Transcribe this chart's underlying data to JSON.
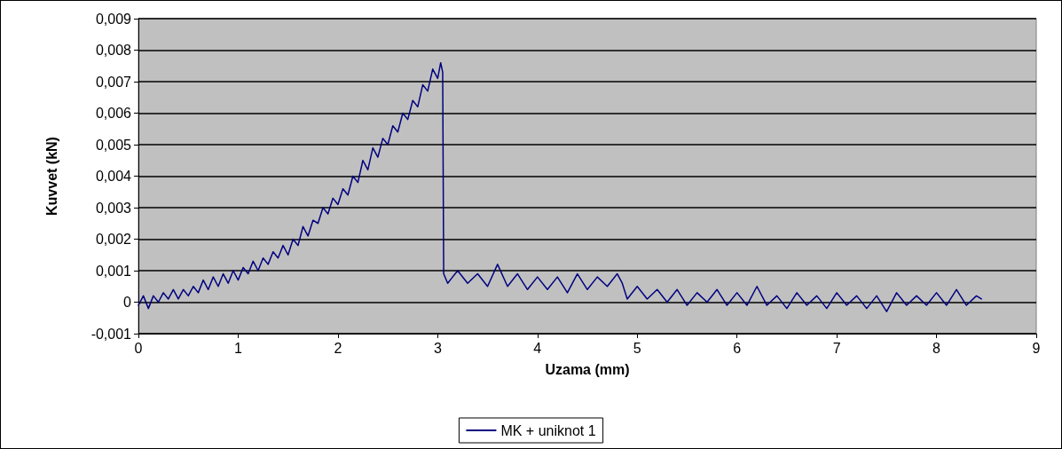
{
  "chart_data": {
    "type": "line",
    "xlabel": "Uzama (mm)",
    "ylabel": "Kuvvet (kN)",
    "series": [
      {
        "name": "MK + uniknot 1",
        "color": "#000080",
        "x": [
          0,
          0.05,
          0.1,
          0.15,
          0.2,
          0.25,
          0.3,
          0.35,
          0.4,
          0.45,
          0.5,
          0.55,
          0.6,
          0.65,
          0.7,
          0.75,
          0.8,
          0.85,
          0.9,
          0.95,
          1.0,
          1.05,
          1.1,
          1.15,
          1.2,
          1.25,
          1.3,
          1.35,
          1.4,
          1.45,
          1.5,
          1.55,
          1.6,
          1.65,
          1.7,
          1.75,
          1.8,
          1.85,
          1.9,
          1.95,
          2.0,
          2.05,
          2.1,
          2.15,
          2.2,
          2.25,
          2.3,
          2.35,
          2.4,
          2.45,
          2.5,
          2.55,
          2.6,
          2.65,
          2.7,
          2.75,
          2.8,
          2.85,
          2.9,
          2.95,
          3.0,
          3.03,
          3.05,
          3.06,
          3.1,
          3.2,
          3.3,
          3.4,
          3.5,
          3.6,
          3.7,
          3.8,
          3.9,
          4.0,
          4.1,
          4.2,
          4.3,
          4.4,
          4.5,
          4.6,
          4.7,
          4.8,
          4.85,
          4.9,
          5.0,
          5.1,
          5.2,
          5.3,
          5.4,
          5.5,
          5.6,
          5.7,
          5.8,
          5.9,
          6.0,
          6.1,
          6.2,
          6.3,
          6.4,
          6.5,
          6.6,
          6.7,
          6.8,
          6.9,
          7.0,
          7.1,
          7.2,
          7.3,
          7.4,
          7.5,
          7.6,
          7.7,
          7.8,
          7.9,
          8.0,
          8.1,
          8.2,
          8.3,
          8.4,
          8.45
        ],
        "values": [
          -0.0001,
          0.0002,
          -0.0002,
          0.0002,
          0.0,
          0.0003,
          0.0001,
          0.0004,
          0.0001,
          0.0004,
          0.0002,
          0.0005,
          0.0003,
          0.0007,
          0.0004,
          0.0008,
          0.0005,
          0.0009,
          0.0006,
          0.001,
          0.0007,
          0.0011,
          0.0009,
          0.0013,
          0.001,
          0.0014,
          0.0012,
          0.0016,
          0.0014,
          0.0018,
          0.0015,
          0.002,
          0.0018,
          0.0024,
          0.0021,
          0.0026,
          0.0025,
          0.003,
          0.0028,
          0.0033,
          0.0031,
          0.0036,
          0.0034,
          0.004,
          0.0038,
          0.0045,
          0.0042,
          0.0049,
          0.0046,
          0.0052,
          0.005,
          0.0056,
          0.0054,
          0.006,
          0.0058,
          0.0064,
          0.0062,
          0.0069,
          0.0067,
          0.0074,
          0.0071,
          0.0076,
          0.0073,
          0.0009,
          0.0006,
          0.001,
          0.0006,
          0.0009,
          0.0005,
          0.0012,
          0.0005,
          0.0009,
          0.0004,
          0.0008,
          0.0004,
          0.0008,
          0.0003,
          0.0009,
          0.0004,
          0.0008,
          0.0005,
          0.0009,
          0.0006,
          0.0001,
          0.0005,
          0.0001,
          0.0004,
          0.0,
          0.0004,
          -0.0001,
          0.0003,
          0.0,
          0.0004,
          -0.0001,
          0.0003,
          -0.0001,
          0.0005,
          -0.0001,
          0.0002,
          -0.0002,
          0.0003,
          -0.0001,
          0.0002,
          -0.0002,
          0.0003,
          -0.0001,
          0.0002,
          -0.0002,
          0.0002,
          -0.0003,
          0.0003,
          -0.0001,
          0.0002,
          -0.0001,
          0.0003,
          -0.0001,
          0.0004,
          -0.0001,
          0.0002,
          0.0001
        ]
      }
    ],
    "xlim": [
      0,
      9
    ],
    "xticks": [
      0,
      1,
      2,
      3,
      4,
      5,
      6,
      7,
      8,
      9
    ],
    "ylim": [
      -0.001,
      0.009
    ],
    "yticks": [
      {
        "value": -0.001,
        "label": "-0,001"
      },
      {
        "value": 0,
        "label": "0"
      },
      {
        "value": 0.001,
        "label": "0,001"
      },
      {
        "value": 0.002,
        "label": "0,002"
      },
      {
        "value": 0.003,
        "label": "0,003"
      },
      {
        "value": 0.004,
        "label": "0,004"
      },
      {
        "value": 0.005,
        "label": "0,005"
      },
      {
        "value": 0.006,
        "label": "0,006"
      },
      {
        "value": 0.007,
        "label": "0,007"
      },
      {
        "value": 0.008,
        "label": "0,008"
      },
      {
        "value": 0.009,
        "label": "0,009"
      }
    ],
    "grid": "y",
    "legend": "bottom",
    "marker": "none",
    "line_style": "solid"
  }
}
